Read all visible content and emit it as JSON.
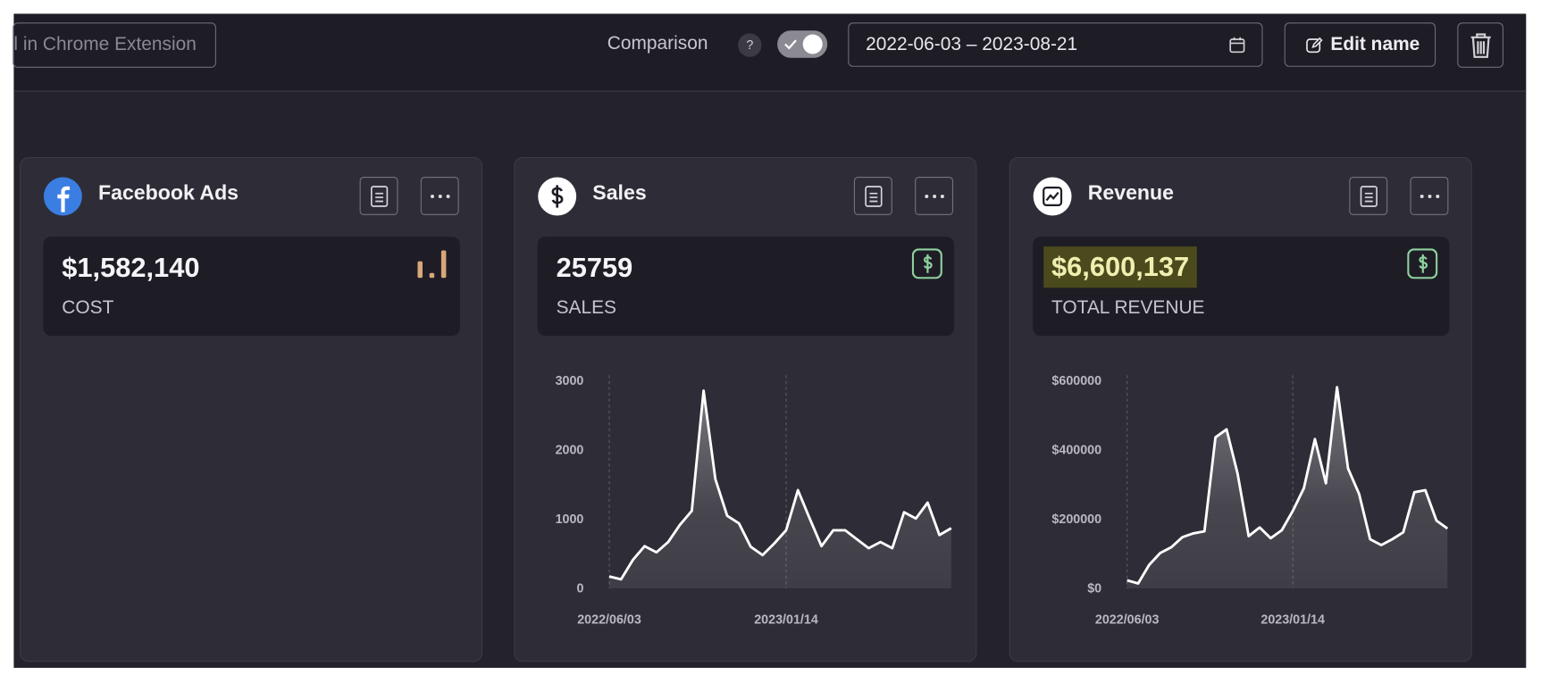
{
  "toolbar": {
    "extension_button": "l in Chrome Extension",
    "comparison_label": "Comparison",
    "help": "?",
    "date_range": "2022-06-03 – 2023-08-21",
    "edit_name": "Edit name"
  },
  "cards": [
    {
      "title": "Facebook Ads",
      "value": "$1,582,140",
      "metric": "COST"
    },
    {
      "title": "Sales",
      "value": 25759,
      "metric": "SALES",
      "chart": {
        "type": "area",
        "color": "#ffffff",
        "categories": [
          "2022/06/03",
          null,
          null,
          null,
          null,
          null,
          null,
          null,
          null,
          null,
          null,
          null,
          null,
          null,
          null,
          "2023/01/14",
          null,
          null,
          null,
          null,
          null,
          null,
          null,
          null,
          null,
          null,
          null,
          null,
          null,
          null
        ],
        "values": [
          170,
          130,
          410,
          610,
          520,
          670,
          920,
          1120,
          2860,
          1580,
          1050,
          940,
          600,
          480,
          650,
          840,
          1420,
          1010,
          610,
          840,
          840,
          710,
          580,
          670,
          580,
          1100,
          1010,
          1240,
          770,
          870
        ],
        "ylim": [
          0,
          3000
        ],
        "yticks": [
          0,
          1000,
          2000,
          3000
        ]
      }
    },
    {
      "title": "Revenue",
      "value": "$6,600,137",
      "metric": "TOTAL REVENUE",
      "chart": {
        "type": "area",
        "color": "#ffffff",
        "categories": [
          "2022/06/03",
          null,
          null,
          null,
          null,
          null,
          null,
          null,
          null,
          null,
          null,
          null,
          null,
          null,
          null,
          "2023/01/14",
          null,
          null,
          null,
          null,
          null,
          null,
          null,
          null,
          null,
          null,
          null,
          null,
          null,
          null
        ],
        "values": [
          23000,
          14000,
          68000,
          102000,
          119000,
          148000,
          159000,
          165000,
          437000,
          460000,
          332000,
          151000,
          176000,
          145000,
          168000,
          224000,
          290000,
          432000,
          304000,
          582000,
          347000,
          273000,
          142000,
          125000,
          142000,
          162000,
          278000,
          284000,
          196000,
          173000
        ],
        "ylim": [
          0,
          600000
        ],
        "yticks": [
          {
            "value": 0,
            "label": "$0"
          },
          {
            "value": 200000,
            "label": "$200000"
          },
          {
            "value": 400000,
            "label": "$400000"
          },
          {
            "value": 600000,
            "label": "$600000"
          }
        ]
      }
    }
  ]
}
